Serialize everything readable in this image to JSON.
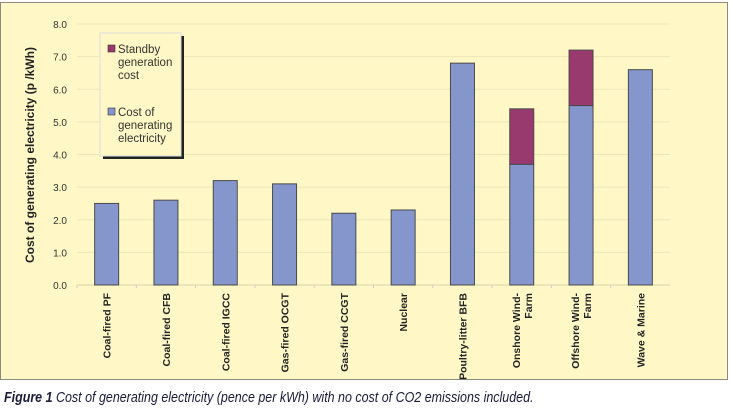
{
  "chart_data": {
    "type": "bar",
    "stacked": true,
    "ylabel": "Cost of generating electricity (p /kWh)",
    "xlabel": "",
    "ylim": [
      0,
      8
    ],
    "yticks": [
      "0.0",
      "1.0",
      "2.0",
      "3.0",
      "4.0",
      "5.0",
      "6.0",
      "7.0",
      "8.0"
    ],
    "grid": true,
    "legend_placement": "top-left",
    "categories": [
      [
        "Coal-fired PF"
      ],
      [
        "Coal-fired CFB"
      ],
      [
        "Coal-fired IGCC"
      ],
      [
        "Gas-fired OCGT"
      ],
      [
        "Gas-fired CCGT"
      ],
      [
        "Nuclear"
      ],
      [
        "Poultry-litter BFB"
      ],
      [
        "Onshore Wind-",
        "Farm"
      ],
      [
        "Offshore Wind-",
        "Farm"
      ],
      [
        "Wave & Marine"
      ]
    ],
    "series": [
      {
        "name": "Cost of generating electricity",
        "legend_lines": [
          "Cost of",
          "generating",
          "electricity"
        ],
        "color": "#8496CC",
        "values": [
          2.5,
          2.6,
          3.2,
          3.1,
          2.2,
          2.3,
          6.8,
          3.7,
          5.5,
          6.6
        ]
      },
      {
        "name": "Standby generation cost",
        "legend_lines": [
          "Standby",
          "generation",
          "cost"
        ],
        "color": "#993A6E",
        "values": [
          0,
          0,
          0,
          0,
          0,
          0,
          0,
          1.7,
          1.7,
          0
        ]
      }
    ]
  },
  "caption": {
    "label": "Figure 1",
    "text": " Cost of generating electricity (pence per kWh) with no cost of CO2 emissions included."
  }
}
